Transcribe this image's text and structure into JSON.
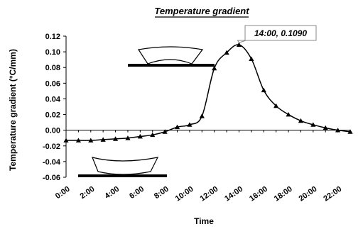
{
  "chart_data": {
    "type": "line",
    "title": "Temperature gradient",
    "xlabel": "Time",
    "ylabel": "Temperature gradient (°C/mm)",
    "xlim": [
      0,
      23
    ],
    "ylim": [
      -0.06,
      0.12
    ],
    "x_ticks": [
      "0:00",
      "2:00",
      "4:00",
      "6:00",
      "8:00",
      "10:00",
      "12:00",
      "14:00",
      "16:00",
      "18:00",
      "20:00",
      "22:00"
    ],
    "y_ticks": [
      "0.12",
      "0.10",
      "0.08",
      "0.06",
      "0.04",
      "0.02",
      "0.00",
      "-0.02",
      "-0.04",
      "-0.06"
    ],
    "grid": false,
    "series": [
      {
        "marker": "triangle",
        "color": "#000000",
        "x": [
          0,
          1,
          2,
          3,
          4,
          5,
          6,
          7,
          8,
          9,
          10,
          11,
          12,
          13,
          14,
          15,
          16,
          17,
          18,
          19,
          20,
          21,
          22,
          23
        ],
        "y": [
          -0.013,
          -0.013,
          -0.013,
          -0.012,
          -0.011,
          -0.01,
          -0.008,
          -0.006,
          -0.002,
          0.004,
          0.007,
          0.018,
          0.079,
          0.099,
          0.109,
          0.091,
          0.051,
          0.031,
          0.02,
          0.012,
          0.007,
          0.003,
          0.0,
          -0.002
        ]
      }
    ],
    "annotations": [
      {
        "text": "14:00, 0.1090",
        "x": 14,
        "y": 0.109
      }
    ]
  }
}
